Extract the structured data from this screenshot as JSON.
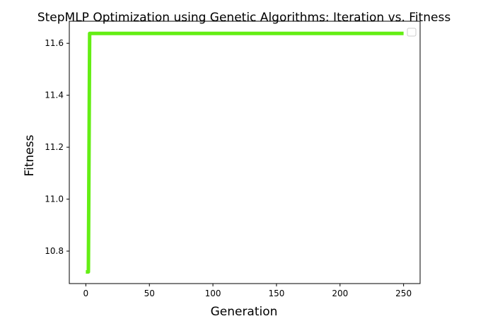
{
  "chart_data": {
    "type": "line",
    "title": "StepMLP Optimization using Genetic Algorithms: Iteration vs. Fitness",
    "xlabel": "Generation",
    "ylabel": "Fitness",
    "xlim": [
      -13,
      263
    ],
    "ylim": [
      10.675,
      11.685
    ],
    "xticks": [
      0,
      50,
      100,
      150,
      200,
      250
    ],
    "yticks": [
      10.8,
      11.0,
      11.2,
      11.4,
      11.6
    ],
    "xtick_labels": [
      "0",
      "50",
      "100",
      "150",
      "200",
      "250"
    ],
    "ytick_labels": [
      "10.8",
      "11.0",
      "11.2",
      "11.4",
      "11.6"
    ],
    "grid": false,
    "legend": {
      "placement": "top-right",
      "entries": []
    },
    "series": [
      {
        "color": "#64ee14",
        "x": [
          0,
          1,
          2,
          3,
          250
        ],
        "y": [
          10.72,
          10.72,
          10.72,
          11.638,
          11.638
        ]
      }
    ]
  }
}
